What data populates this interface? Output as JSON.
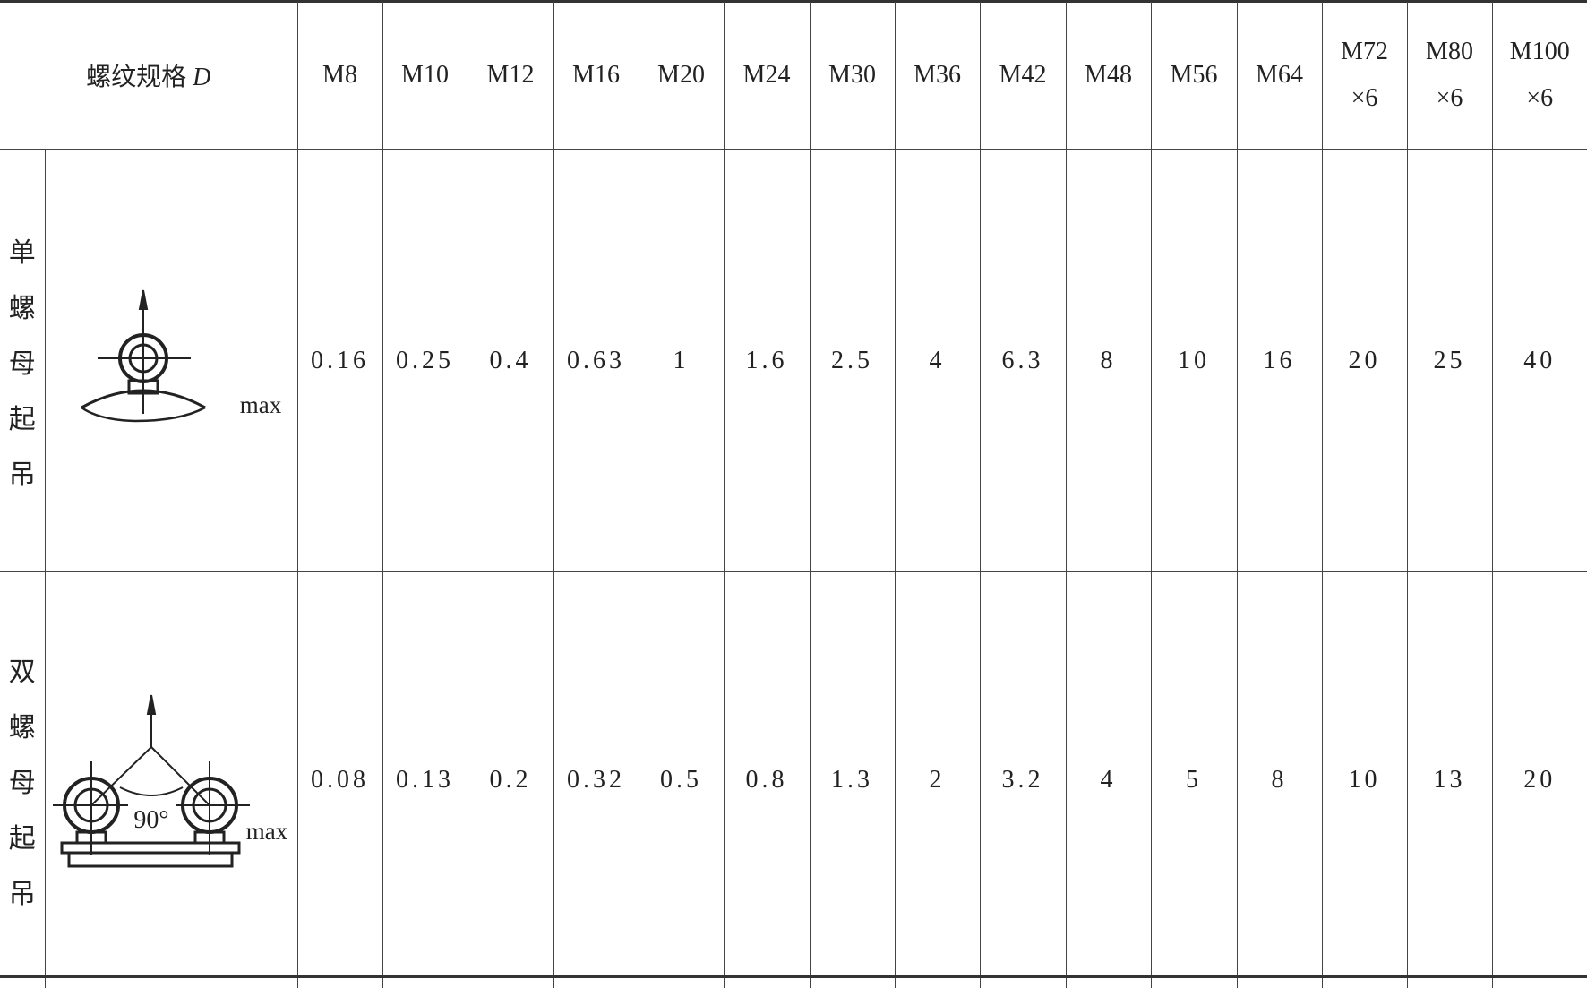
{
  "header": {
    "label": "螺纹规格",
    "label_var": "D",
    "sizes": [
      [
        "M8"
      ],
      [
        "M10"
      ],
      [
        "M12"
      ],
      [
        "M16"
      ],
      [
        "M20"
      ],
      [
        "M24"
      ],
      [
        "M30"
      ],
      [
        "M36"
      ],
      [
        "M42"
      ],
      [
        "M48"
      ],
      [
        "M56"
      ],
      [
        "M64"
      ],
      [
        "M72",
        "×6"
      ],
      [
        "M80",
        "×6"
      ],
      [
        "M100",
        "×6"
      ]
    ]
  },
  "rows": [
    {
      "label_chars": [
        "单",
        "螺",
        "母",
        "起",
        "吊"
      ],
      "figure_text": "max",
      "values": [
        "0.16",
        "0.25",
        "0.4",
        "0.63",
        "1",
        "1.6",
        "2.5",
        "4",
        "6.3",
        "8",
        "10",
        "16",
        "20",
        "25",
        "40"
      ]
    },
    {
      "label_chars": [
        "双",
        "螺",
        "母",
        "起",
        "吊"
      ],
      "figure_text": "max",
      "figure_angle": "90°",
      "values": [
        "0.08",
        "0.13",
        "0.2",
        "0.32",
        "0.5",
        "0.8",
        "1.3",
        "2",
        "3.2",
        "4",
        "5",
        "8",
        "10",
        "13",
        "20"
      ]
    }
  ]
}
